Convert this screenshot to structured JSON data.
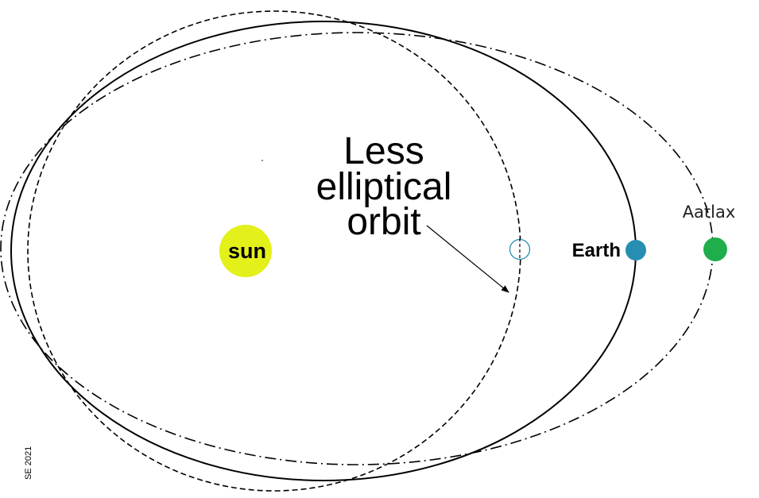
{
  "sun": {
    "label": "sun",
    "color": "#e3f01a"
  },
  "earth": {
    "label": "Earth",
    "color": "#268fb1"
  },
  "aatlax": {
    "label": "Aatlax",
    "color": "#1fae4b"
  },
  "annotation": {
    "line1": "Less",
    "line2": "elliptical",
    "line3": "orbit"
  },
  "credit": "SE 2021"
}
